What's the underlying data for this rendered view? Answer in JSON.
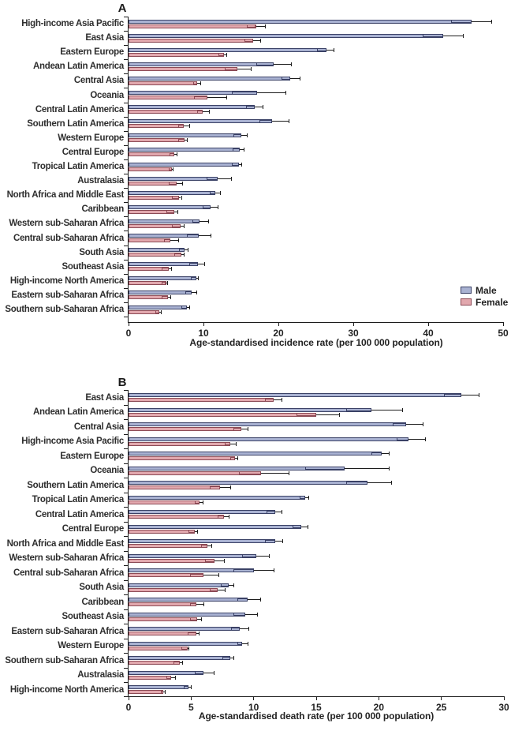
{
  "figure": {
    "legend": {
      "male_label": "Male",
      "female_label": "Female"
    },
    "colors": {
      "male_fill": "#a9b2d2",
      "male_border": "#3a4166",
      "female_fill": "#e2a8ae",
      "female_border": "#8c4a55",
      "error": "#1c1c1c",
      "axis": "#1c1c1c",
      "text": "#2e2e2e"
    }
  },
  "chart_data": [
    {
      "id": "A",
      "type": "bar",
      "title": "A",
      "orientation": "horizontal",
      "xlabel": "Age-standardised incidence rate (per 100 000 population)",
      "xlim": [
        0,
        50
      ],
      "xticks": [
        0,
        10,
        20,
        30,
        40,
        50
      ],
      "grid": false,
      "legend_position": "right-middle",
      "series_names": [
        "Male",
        "Female"
      ],
      "error_bar": "95% uncertainty interval (box to lower bound, whisker to upper bound)",
      "rows": [
        {
          "region": "High-income Asia Pacific",
          "male": 45.8,
          "male_ci": [
            43.1,
            48.4
          ],
          "female": 17.0,
          "female_ci": [
            15.8,
            18.2
          ]
        },
        {
          "region": "East Asia",
          "male": 42.0,
          "male_ci": [
            39.3,
            44.6
          ],
          "female": 16.6,
          "female_ci": [
            15.5,
            17.6
          ]
        },
        {
          "region": "Eastern Europe",
          "male": 26.4,
          "male_ci": [
            25.2,
            27.4
          ],
          "female": 12.7,
          "female_ci": [
            12.0,
            13.1
          ]
        },
        {
          "region": "Andean Latin America",
          "male": 19.4,
          "male_ci": [
            17.1,
            21.7
          ],
          "female": 14.5,
          "female_ci": [
            12.8,
            16.3
          ]
        },
        {
          "region": "Central Asia",
          "male": 21.6,
          "male_ci": [
            20.4,
            22.8
          ],
          "female": 9.2,
          "female_ci": [
            8.6,
            9.6
          ]
        },
        {
          "region": "Oceania",
          "male": 17.2,
          "male_ci": [
            13.8,
            20.9
          ],
          "female": 10.5,
          "female_ci": [
            8.7,
            13.0
          ]
        },
        {
          "region": "Central Latin America",
          "male": 16.8,
          "male_ci": [
            15.7,
            17.9
          ],
          "female": 9.9,
          "female_ci": [
            9.2,
            10.7
          ]
        },
        {
          "region": "Southern Latin America",
          "male": 19.2,
          "male_ci": [
            17.5,
            21.4
          ],
          "female": 7.4,
          "female_ci": [
            6.6,
            8.1
          ]
        },
        {
          "region": "Western Europe",
          "male": 15.0,
          "male_ci": [
            14.0,
            15.8
          ],
          "female": 7.5,
          "female_ci": [
            6.6,
            7.8
          ]
        },
        {
          "region": "Central Europe",
          "male": 14.8,
          "male_ci": [
            13.9,
            15.4
          ],
          "female": 6.1,
          "female_ci": [
            5.5,
            6.4
          ]
        },
        {
          "region": "Tropical Latin America",
          "male": 14.7,
          "male_ci": [
            13.8,
            15.1
          ],
          "female": 5.8,
          "female_ci": [
            5.4,
            5.9
          ]
        },
        {
          "region": "Australasia",
          "male": 11.9,
          "male_ci": [
            10.4,
            13.7
          ],
          "female": 6.4,
          "female_ci": [
            5.4,
            7.2
          ]
        },
        {
          "region": "North Africa and Middle East",
          "male": 11.6,
          "male_ci": [
            10.8,
            12.2
          ],
          "female": 6.7,
          "female_ci": [
            5.8,
            7.0
          ]
        },
        {
          "region": "Caribbean",
          "male": 10.9,
          "male_ci": [
            9.9,
            11.9
          ],
          "female": 6.1,
          "female_ci": [
            5.1,
            6.5
          ]
        },
        {
          "region": "Western sub-Saharan Africa",
          "male": 9.5,
          "male_ci": [
            8.5,
            10.6
          ],
          "female": 6.9,
          "female_ci": [
            5.8,
            7.4
          ]
        },
        {
          "region": "Central sub-Saharan Africa",
          "male": 9.4,
          "male_ci": [
            7.8,
            10.9
          ],
          "female": 5.6,
          "female_ci": [
            4.7,
            6.6
          ]
        },
        {
          "region": "South Asia",
          "male": 7.5,
          "male_ci": [
            6.7,
            7.9
          ],
          "female": 7.1,
          "female_ci": [
            6.1,
            7.4
          ]
        },
        {
          "region": "Southeast Asia",
          "male": 9.3,
          "male_ci": [
            8.1,
            10.1
          ],
          "female": 5.4,
          "female_ci": [
            4.4,
            5.7
          ]
        },
        {
          "region": "High-income North America",
          "male": 9.1,
          "male_ci": [
            8.3,
            9.3
          ],
          "female": 5.0,
          "female_ci": [
            4.4,
            5.2
          ]
        },
        {
          "region": "Eastern sub-Saharan Africa",
          "male": 8.4,
          "male_ci": [
            7.6,
            9.1
          ],
          "female": 5.3,
          "female_ci": [
            4.4,
            5.6
          ]
        },
        {
          "region": "Southern sub-Saharan Africa",
          "male": 7.8,
          "male_ci": [
            7.1,
            8.1
          ],
          "female": 4.1,
          "female_ci": [
            3.6,
            4.3
          ]
        }
      ]
    },
    {
      "id": "B",
      "type": "bar",
      "title": "B",
      "orientation": "horizontal",
      "xlabel": "Age-standardised death rate (per 100 000 population)",
      "xlim": [
        0,
        30
      ],
      "xticks": [
        0,
        5,
        10,
        15,
        20,
        25,
        30
      ],
      "grid": false,
      "legend_position": "none",
      "series_names": [
        "Male",
        "Female"
      ],
      "error_bar": "95% uncertainty interval (box to lower bound, whisker to upper bound)",
      "rows": [
        {
          "region": "East Asia",
          "male": 26.6,
          "male_ci": [
            25.2,
            28.0
          ],
          "female": 11.6,
          "female_ci": [
            10.9,
            12.2
          ]
        },
        {
          "region": "Andean Latin America",
          "male": 19.4,
          "male_ci": [
            17.4,
            21.9
          ],
          "female": 15.0,
          "female_ci": [
            13.4,
            16.8
          ]
        },
        {
          "region": "Central Asia",
          "male": 22.2,
          "male_ci": [
            21.1,
            23.5
          ],
          "female": 9.0,
          "female_ci": [
            8.4,
            9.5
          ]
        },
        {
          "region": "High-income Asia Pacific",
          "male": 22.4,
          "male_ci": [
            21.4,
            23.7
          ],
          "female": 8.1,
          "female_ci": [
            7.7,
            8.6
          ]
        },
        {
          "region": "Eastern Europe",
          "male": 20.2,
          "male_ci": [
            19.4,
            20.8
          ],
          "female": 8.5,
          "female_ci": [
            8.1,
            8.7
          ]
        },
        {
          "region": "Oceania",
          "male": 17.3,
          "male_ci": [
            14.1,
            20.8
          ],
          "female": 10.6,
          "female_ci": [
            8.8,
            12.8
          ]
        },
        {
          "region": "Southern Latin America",
          "male": 19.1,
          "male_ci": [
            17.4,
            21.0
          ],
          "female": 7.3,
          "female_ci": [
            6.5,
            8.1
          ]
        },
        {
          "region": "Tropical Latin America",
          "male": 14.1,
          "male_ci": [
            13.7,
            14.4
          ],
          "female": 5.7,
          "female_ci": [
            5.3,
            5.9
          ]
        },
        {
          "region": "Central Latin America",
          "male": 11.7,
          "male_ci": [
            11.0,
            12.2
          ],
          "female": 7.6,
          "female_ci": [
            7.1,
            8.0
          ]
        },
        {
          "region": "Central Europe",
          "male": 13.8,
          "male_ci": [
            13.1,
            14.3
          ],
          "female": 5.3,
          "female_ci": [
            4.8,
            5.5
          ]
        },
        {
          "region": "North Africa and Middle East",
          "male": 11.7,
          "male_ci": [
            10.9,
            12.3
          ],
          "female": 6.3,
          "female_ci": [
            5.8,
            6.6
          ]
        },
        {
          "region": "Western sub-Saharan Africa",
          "male": 10.2,
          "male_ci": [
            9.1,
            11.2
          ],
          "female": 6.9,
          "female_ci": [
            6.1,
            7.6
          ]
        },
        {
          "region": "Central sub-Saharan Africa",
          "male": 10.0,
          "male_ci": [
            8.4,
            11.6
          ],
          "female": 6.0,
          "female_ci": [
            4.9,
            7.2
          ]
        },
        {
          "region": "South Asia",
          "male": 8.0,
          "male_ci": [
            7.4,
            8.4
          ],
          "female": 7.1,
          "female_ci": [
            6.5,
            7.7
          ]
        },
        {
          "region": "Caribbean",
          "male": 9.5,
          "male_ci": [
            8.7,
            10.5
          ],
          "female": 5.4,
          "female_ci": [
            4.9,
            6.0
          ]
        },
        {
          "region": "Southeast Asia",
          "male": 9.3,
          "male_ci": [
            8.4,
            10.3
          ],
          "female": 5.5,
          "female_ci": [
            4.9,
            5.8
          ]
        },
        {
          "region": "Eastern sub-Saharan Africa",
          "male": 8.9,
          "male_ci": [
            8.2,
            9.6
          ],
          "female": 5.4,
          "female_ci": [
            4.7,
            5.6
          ]
        },
        {
          "region": "Western Europe",
          "male": 9.1,
          "male_ci": [
            8.7,
            9.5
          ],
          "female": 4.7,
          "female_ci": [
            4.2,
            4.8
          ]
        },
        {
          "region": "Southern sub-Saharan Africa",
          "male": 8.1,
          "male_ci": [
            7.5,
            8.4
          ],
          "female": 4.1,
          "female_ci": [
            3.6,
            4.3
          ]
        },
        {
          "region": "Australasia",
          "male": 6.0,
          "male_ci": [
            5.3,
            6.8
          ],
          "female": 3.4,
          "female_ci": [
            3.0,
            3.7
          ]
        },
        {
          "region": "High-income North America",
          "male": 4.8,
          "male_ci": [
            4.4,
            5.0
          ],
          "female": 2.8,
          "female_ci": [
            2.6,
            2.9
          ]
        }
      ]
    }
  ]
}
